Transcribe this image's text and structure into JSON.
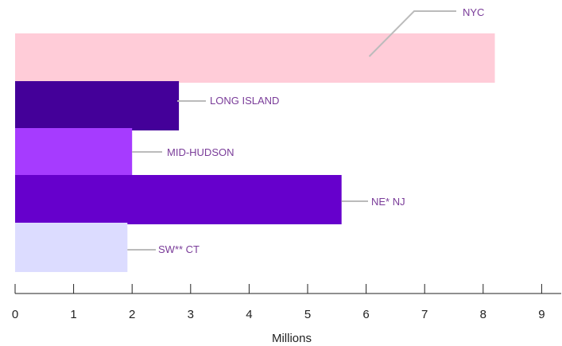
{
  "chart_data": {
    "type": "bar",
    "orientation": "horizontal",
    "categories": [
      "NYC",
      "LONG ISLAND",
      "MID-HUDSON",
      "NE* NJ",
      "SW** CT"
    ],
    "values": [
      8.2,
      2.8,
      2.0,
      5.58,
      1.92
    ],
    "bar_colors": [
      "#ffccd8",
      "#440099",
      "#a63bff",
      "#6600cc",
      "#dcdcff"
    ],
    "label_color": "#7a3c99",
    "leader_color": "#bbbbbb",
    "xlabel": "Millions",
    "xlim": [
      0,
      9
    ],
    "xticks": [
      0,
      1,
      2,
      3,
      4,
      5,
      6,
      7,
      8,
      9
    ],
    "grid": false,
    "legend": "none"
  }
}
